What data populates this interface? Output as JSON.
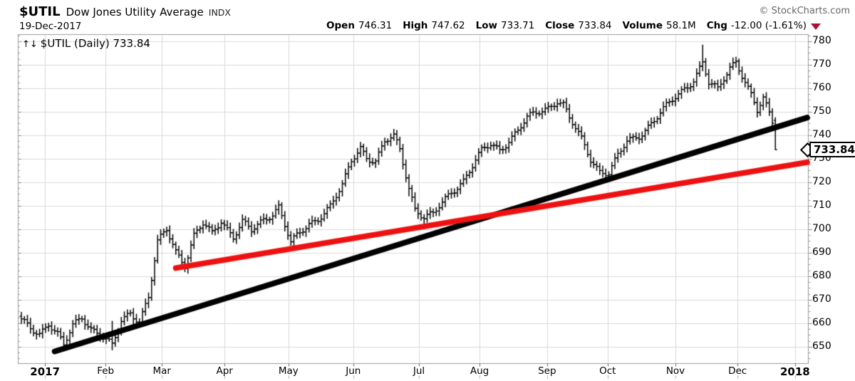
{
  "header": {
    "symbol": "$UTIL",
    "name": "Dow Jones Utility Average",
    "exchange": "INDX",
    "copyright": "© StockCharts.com",
    "date": "19-Dec-2017",
    "quote": {
      "items": [
        {
          "label": "Open",
          "value": "746.31"
        },
        {
          "label": "High",
          "value": "747.62"
        },
        {
          "label": "Low",
          "value": "733.71"
        },
        {
          "label": "Close",
          "value": "733.84"
        },
        {
          "label": "Volume",
          "value": "58.1M"
        },
        {
          "label": "Chg",
          "value": "-12.00 (-1.61%)"
        }
      ],
      "direction": "down"
    }
  },
  "legend": {
    "icon": "↑↓",
    "text": "$UTIL (Daily) 733.84"
  },
  "price_pointer": {
    "value": "733.84",
    "price": 733.84
  },
  "chart_data": {
    "type": "ohlc",
    "title": "$UTIL Dow Jones Utility Average (Daily) — 2017",
    "last_quote": {
      "open": 746.31,
      "high": 747.62,
      "low": 733.71,
      "close": 733.84,
      "volume": "58.1M",
      "change": -12.0,
      "change_pct": -1.61,
      "date": "19-Dec-2017"
    },
    "y_axis": {
      "side": "right",
      "min": 643,
      "max": 783,
      "ticks": [
        650,
        660,
        670,
        680,
        690,
        700,
        710,
        720,
        730,
        740,
        750,
        760,
        770,
        780
      ],
      "minor_tick_step": 2.5
    },
    "x_axis": {
      "labels": [
        {
          "text": "2017",
          "day": 7.8,
          "year": true
        },
        {
          "text": "Feb",
          "day": 27.8
        },
        {
          "text": "Mar",
          "day": 46.4
        },
        {
          "text": "Apr",
          "day": 67.1
        },
        {
          "text": "May",
          "day": 88.2
        },
        {
          "text": "Jun",
          "day": 109.6
        },
        {
          "text": "Jul",
          "day": 131.3
        },
        {
          "text": "Aug",
          "day": 151.3
        },
        {
          "text": "Sep",
          "day": 173.6
        },
        {
          "text": "Oct",
          "day": 193.6
        },
        {
          "text": "Nov",
          "day": 216.0
        },
        {
          "text": "Dec",
          "day": 236.5
        },
        {
          "text": "2018",
          "day": 255.5,
          "year": true
        }
      ]
    },
    "days_total": 250,
    "close_anchors": [
      [
        0,
        661
      ],
      [
        3,
        658
      ],
      [
        6,
        656
      ],
      [
        9,
        660
      ],
      [
        12,
        655
      ],
      [
        14,
        650
      ],
      [
        17,
        659
      ],
      [
        20,
        663
      ],
      [
        23,
        658
      ],
      [
        26,
        655
      ],
      [
        30,
        650
      ],
      [
        33,
        661
      ],
      [
        36,
        665
      ],
      [
        39,
        661
      ],
      [
        42,
        671
      ],
      [
        45,
        694
      ],
      [
        48,
        700
      ],
      [
        51,
        691
      ],
      [
        54,
        685
      ],
      [
        57,
        697
      ],
      [
        60,
        702
      ],
      [
        63,
        698
      ],
      [
        66,
        704
      ],
      [
        70,
        697
      ],
      [
        73,
        703
      ],
      [
        76,
        699
      ],
      [
        80,
        704
      ],
      [
        83,
        707
      ],
      [
        85,
        710
      ],
      [
        89,
        694
      ],
      [
        92,
        698
      ],
      [
        95,
        702
      ],
      [
        98,
        705
      ],
      [
        102,
        710
      ],
      [
        106,
        718
      ],
      [
        109,
        729
      ],
      [
        112,
        735
      ],
      [
        114,
        731
      ],
      [
        117,
        729
      ],
      [
        120,
        737
      ],
      [
        123,
        739
      ],
      [
        125,
        734
      ],
      [
        128,
        718
      ],
      [
        130,
        709
      ],
      [
        133,
        705
      ],
      [
        136,
        706
      ],
      [
        139,
        711
      ],
      [
        142,
        716
      ],
      [
        146,
        721
      ],
      [
        149,
        727
      ],
      [
        152,
        733
      ],
      [
        155,
        736
      ],
      [
        158,
        734
      ],
      [
        161,
        738
      ],
      [
        164,
        742
      ],
      [
        167,
        747
      ],
      [
        171,
        750
      ],
      [
        174,
        752
      ],
      [
        177,
        755
      ],
      [
        179,
        753
      ],
      [
        181,
        747
      ],
      [
        185,
        738
      ],
      [
        188,
        730
      ],
      [
        191,
        725
      ],
      [
        194,
        724
      ],
      [
        197,
        731
      ],
      [
        200,
        737
      ],
      [
        204,
        740
      ],
      [
        207,
        744
      ],
      [
        210,
        748
      ],
      [
        213,
        752
      ],
      [
        216,
        756
      ],
      [
        219,
        760
      ],
      [
        222,
        764
      ],
      [
        225,
        771
      ],
      [
        227,
        762
      ],
      [
        230,
        759
      ],
      [
        232,
        764
      ],
      [
        234,
        769
      ],
      [
        236,
        772
      ],
      [
        238,
        766
      ],
      [
        241,
        757
      ],
      [
        243,
        750
      ],
      [
        245,
        755
      ],
      [
        247,
        749
      ],
      [
        248,
        745.8
      ],
      [
        249,
        733.84
      ]
    ],
    "bar_overrides": [
      {
        "day": 14,
        "low": 649
      },
      {
        "day": 30,
        "high": 661,
        "low": 648.5
      },
      {
        "day": 128,
        "low": 714
      },
      {
        "day": 225,
        "high": 778.5
      },
      {
        "day": 249,
        "open": 746.31,
        "high": 747.62,
        "low": 733.71,
        "close": 733.84
      }
    ],
    "trendlines": [
      {
        "name": "long-term-trendline-black",
        "color": "#000000",
        "width": 8,
        "from": {
          "day": 11,
          "price": 648
        },
        "to": {
          "day": 259.5,
          "price": 747.5
        }
      },
      {
        "name": "secondary-trendline-red",
        "color": "#ee1111",
        "width": 8,
        "from": {
          "day": 51,
          "price": 683.5
        },
        "to": {
          "day": 259.5,
          "price": 728.5
        }
      }
    ],
    "grid": true,
    "colors": {
      "bars": "#000000",
      "grid": "#d9d9d9",
      "border": "#999999",
      "tick": "#666666",
      "minor_tick": "#999999",
      "bottom_minor": "#b5b5b5",
      "down_triangle": "#aa1133"
    },
    "render_hints": {
      "wiggle": [
        [
          1.13,
          1.1
        ],
        [
          0.41,
          0.9
        ]
      ],
      "range_hi": [
        2.33,
        0.7,
        1.1,
        1.1
      ],
      "range_lo": [
        1.77,
        2.1,
        1.1,
        1.1
      ]
    }
  }
}
